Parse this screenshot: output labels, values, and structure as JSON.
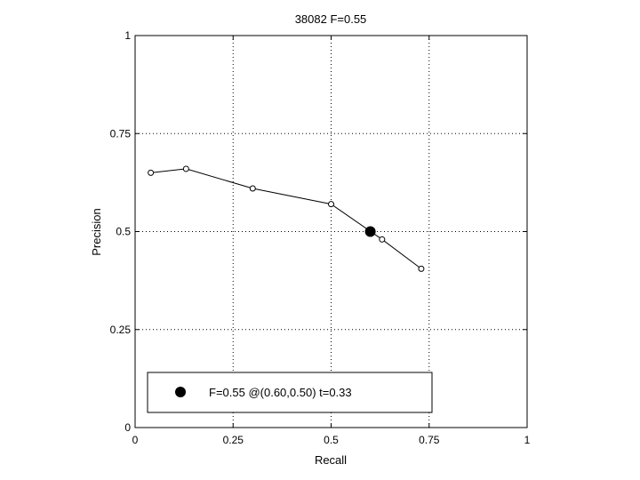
{
  "chart_data": {
    "type": "line",
    "title": "38082 F=0.55",
    "xlabel": "Recall",
    "ylabel": "Precision",
    "xlim": [
      0,
      1
    ],
    "ylim": [
      0,
      1
    ],
    "xticks": [
      "0",
      "0.25",
      "0.5",
      "0.75",
      "1"
    ],
    "yticks": [
      "0",
      "0.25",
      "0.5",
      "0.75",
      "1"
    ],
    "grid": true,
    "series": [
      {
        "x": [
          0.04,
          0.13,
          0.3,
          0.5,
          0.63,
          0.73
        ],
        "y": [
          0.65,
          0.66,
          0.61,
          0.57,
          0.48,
          0.405
        ],
        "marker": "open-circle",
        "color": "#000000"
      }
    ],
    "highlight_point": {
      "x": 0.6,
      "y": 0.5,
      "marker": "filled-circle"
    },
    "legend": {
      "placement": "bottom-left",
      "label": "F=0.55 @(0.60,0.50) t=0.33"
    }
  }
}
